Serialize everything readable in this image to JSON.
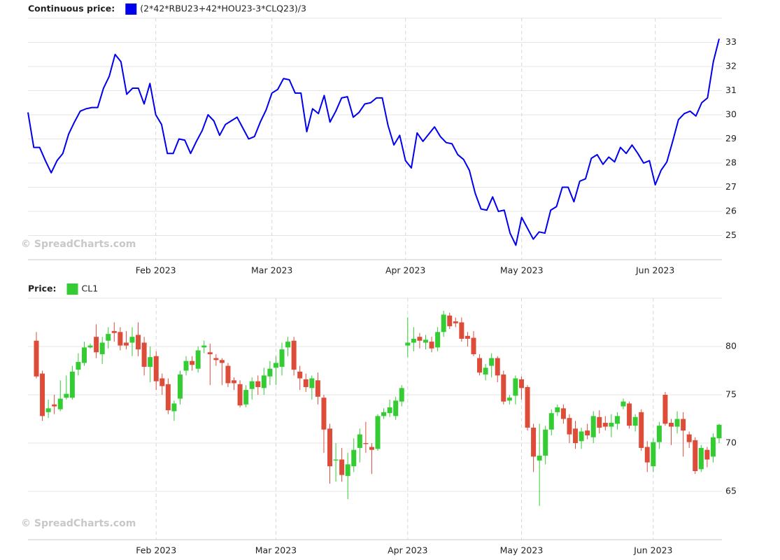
{
  "chart_data": [
    {
      "type": "line",
      "legend_label": "Continuous price:",
      "watermark": "© SpreadCharts.com",
      "series": [
        {
          "name": "(2*42*RBU23+42*HOU23-3*CLQ23)/3",
          "color": "#0000ee",
          "values": [
            30.1,
            28.65,
            28.65,
            28.1,
            27.6,
            28.1,
            28.4,
            29.2,
            29.7,
            30.15,
            30.25,
            30.3,
            30.3,
            31.1,
            31.6,
            32.5,
            32.2,
            30.85,
            31.1,
            31.1,
            30.45,
            31.3,
            30,
            29.6,
            28.4,
            28.4,
            29,
            28.95,
            28.4,
            28.9,
            29.35,
            30,
            29.75,
            29.15,
            29.6,
            29.75,
            29.9,
            29.45,
            29,
            29.1,
            29.7,
            30.2,
            30.9,
            31.05,
            31.5,
            31.45,
            30.9,
            30.9,
            29.3,
            30.25,
            30.05,
            30.8,
            29.7,
            30.15,
            30.7,
            30.75,
            29.9,
            30.1,
            30.45,
            30.5,
            30.7,
            30.7,
            29.55,
            28.75,
            29.15,
            28.1,
            27.8,
            29.25,
            28.9,
            29.2,
            29.5,
            29.1,
            28.85,
            28.8,
            28.35,
            28.15,
            27.7,
            26.75,
            26.1,
            26.05,
            26.6,
            26,
            26.05,
            25.1,
            24.6,
            25.75,
            25.3,
            24.85,
            25.15,
            25.1,
            26.05,
            26.2,
            27,
            27,
            26.4,
            27.25,
            27.35,
            28.2,
            28.35,
            27.95,
            28.25,
            28.05,
            28.65,
            28.4,
            28.75,
            28.4,
            28,
            28.1,
            27.1,
            27.7,
            28.05,
            28.9,
            29.8,
            30.05,
            30.15,
            29.95,
            30.5,
            30.7,
            32.2,
            33.15
          ]
        }
      ],
      "categories": [
        null,
        null,
        null,
        null,
        null,
        null,
        null,
        null,
        null,
        null,
        null,
        null,
        null,
        null,
        null,
        null,
        null,
        null,
        null,
        null,
        null,
        null,
        "Feb 2023",
        null,
        null,
        null,
        null,
        null,
        null,
        null,
        null,
        null,
        null,
        null,
        null,
        null,
        null,
        null,
        null,
        null,
        null,
        null,
        "Mar 2023",
        null,
        null,
        null,
        null,
        null,
        null,
        null,
        null,
        null,
        null,
        null,
        null,
        null,
        null,
        null,
        null,
        null,
        null,
        null,
        null,
        null,
        null,
        "Apr 2023",
        null,
        null,
        null,
        null,
        null,
        null,
        null,
        null,
        null,
        null,
        null,
        null,
        null,
        null,
        null,
        null,
        null,
        null,
        null,
        "May 2023",
        null,
        null,
        null,
        null,
        null,
        null,
        null,
        null,
        null,
        null,
        null,
        null,
        null,
        null,
        null,
        null,
        null,
        null,
        null,
        null,
        null,
        null,
        "Jun 2023",
        null,
        null,
        null,
        null,
        null,
        null,
        null,
        null,
        null,
        null,
        null
      ],
      "ylim": [
        24,
        34
      ],
      "yticks": [
        25,
        26,
        27,
        28,
        29,
        30,
        31,
        32,
        33
      ],
      "grid": true
    },
    {
      "type": "candlestick",
      "legend_label": "Price:",
      "watermark": "© SpreadCharts.com",
      "up_color": "#33cc33",
      "down_color": "#dd4b39",
      "series": [
        {
          "name": "CL1",
          "color": "#33cc33",
          "open": [
            80.6,
            77.2,
            73.2,
            74,
            73.5,
            74.7,
            74.7,
            77.6,
            78.3,
            79.9,
            81,
            79.2,
            80.6,
            81.6,
            81.5,
            80.4,
            80.4,
            81.2,
            80.4,
            77.9,
            79,
            76.7,
            76.1,
            73.3,
            74.6,
            77.5,
            78.5,
            77.7,
            79.9,
            79.4,
            78.8,
            78.6,
            78,
            76.5,
            76.1,
            74,
            75.6,
            76.4,
            75.7,
            76.9,
            77.8,
            77.9,
            79.9,
            80.6,
            77.4,
            76.6,
            75.7,
            76.5,
            74.7,
            71.5,
            68.2,
            68.3,
            66.6,
            67.6,
            69.5,
            70,
            69.6,
            69.4,
            72.8,
            73.1,
            72.8,
            74.3,
            80.1,
            80.4,
            81,
            80.4,
            80.5,
            79.9,
            81.5,
            83.2,
            82.6,
            82.5,
            81.1,
            80.9,
            78.8,
            77.1,
            78,
            78.8,
            77.1,
            74.4,
            74.9,
            76.6,
            75.8,
            71.6,
            68.2,
            68.7,
            71.4,
            73.2,
            73.6,
            72.6,
            71.5,
            70.2,
            71.3,
            70.6,
            72.7,
            72.1,
            71.7,
            72,
            73.8,
            74.1,
            71.8,
            73.2,
            69.6,
            67.6,
            70.1,
            75,
            72.1,
            71.7,
            72.5,
            70.9,
            70.3,
            67.3,
            69.3,
            68.6,
            70.5
          ],
          "high": [
            81.5,
            77.5,
            74.5,
            75,
            76.5,
            77,
            78,
            79.3,
            80.5,
            80.3,
            82.3,
            81,
            82,
            82.5,
            82,
            81.6,
            82,
            82.5,
            81,
            80,
            79.5,
            77.2,
            76.7,
            74.4,
            77.5,
            79,
            79,
            80,
            80.6,
            80.3,
            79.2,
            78.8,
            78.3,
            76.8,
            76.5,
            76,
            76.8,
            77,
            77.8,
            78.5,
            79,
            80.4,
            81,
            81,
            78,
            77.2,
            77,
            77.3,
            75,
            72,
            70,
            69.5,
            69,
            70.5,
            71.5,
            72.2,
            70,
            73,
            73.6,
            74.5,
            74.8,
            76,
            83,
            82,
            81.4,
            81.2,
            81,
            82,
            83.7,
            83.5,
            83,
            83,
            81.5,
            81.6,
            79.2,
            78.2,
            79.3,
            79,
            77.5,
            75,
            77,
            76.9,
            76,
            72,
            72,
            71.8,
            73.5,
            74,
            74,
            73,
            72.3,
            71.6,
            72,
            73.3,
            73.4,
            72.8,
            73,
            73.2,
            74.6,
            74.3,
            73,
            73.5,
            70.2,
            70.5,
            72.2,
            75.3,
            72.5,
            73.3,
            73.2,
            71.2,
            70.6,
            69.8,
            69.6,
            71,
            72
          ],
          "low": [
            76.7,
            72.3,
            72.6,
            73,
            73.3,
            74.5,
            74.5,
            77,
            78,
            79.8,
            78.8,
            78.2,
            79.8,
            80.5,
            79.6,
            79.7,
            79,
            79,
            77,
            76.3,
            75.5,
            75,
            73,
            72.3,
            74,
            77,
            77.5,
            77.3,
            79.3,
            76,
            78,
            76,
            75.8,
            75.5,
            73.7,
            73.7,
            74.5,
            75,
            75,
            76,
            76,
            77,
            79,
            77,
            75.5,
            75.3,
            74.5,
            74,
            69,
            65.8,
            66,
            66,
            64.2,
            67,
            68,
            69,
            66.8,
            69.2,
            72.5,
            72.7,
            72.4,
            73.8,
            78.9,
            79.5,
            79.8,
            79.7,
            79.4,
            79.5,
            81,
            81.8,
            82,
            80.5,
            80,
            79,
            77,
            76.5,
            76.8,
            76.3,
            74,
            74,
            74,
            74.5,
            71.3,
            67,
            63.5,
            67.8,
            70.8,
            72.8,
            72,
            70,
            69.4,
            69.4,
            70.4,
            70,
            71,
            71.3,
            70.6,
            71.4,
            73.5,
            71.5,
            71.2,
            69.2,
            67,
            67,
            69.4,
            71.8,
            69.8,
            71,
            68.6,
            69.5,
            66.8,
            67,
            67.5,
            68,
            70
          ],
          "close": [
            76.9,
            72.8,
            73.6,
            73.8,
            74.6,
            75.1,
            77.4,
            78.4,
            79.9,
            80.1,
            79.4,
            80.4,
            81.3,
            81.4,
            80.1,
            80.1,
            81,
            79.7,
            77.9,
            78.9,
            76.4,
            75.9,
            73.4,
            74.1,
            77.1,
            78.5,
            78.1,
            79.6,
            80.1,
            79.2,
            78.6,
            78.3,
            76.2,
            76.2,
            73.9,
            75.5,
            76.4,
            75.8,
            77,
            77.7,
            78.3,
            79.7,
            80.5,
            77.6,
            76.7,
            75.8,
            76.7,
            74.8,
            71.4,
            67.6,
            68.3,
            66.7,
            67.8,
            69.3,
            70.9,
            69.9,
            69.3,
            72.8,
            73.2,
            73.7,
            74.4,
            75.7,
            80.4,
            80.8,
            80.6,
            80.7,
            79.8,
            81.5,
            83.3,
            82.1,
            82.4,
            80.8,
            80.8,
            79.2,
            77.3,
            77.8,
            78.8,
            77,
            74.3,
            74.7,
            76.7,
            75.7,
            71.6,
            68.6,
            68.7,
            71.4,
            73.1,
            73.7,
            72.5,
            70.9,
            70,
            71.2,
            70.8,
            72.8,
            71.6,
            71.7,
            72.1,
            72.8,
            74.3,
            71.8,
            72.7,
            69.5,
            68,
            70.1,
            71.8,
            72,
            71.7,
            72.5,
            71.3,
            70.1,
            67.1,
            69.5,
            68.3,
            70.6,
            71.9
          ]
        }
      ],
      "categories": [
        null,
        null,
        null,
        null,
        null,
        null,
        null,
        null,
        null,
        null,
        null,
        null,
        null,
        null,
        null,
        null,
        null,
        null,
        null,
        null,
        "Feb 2023",
        null,
        null,
        null,
        null,
        null,
        null,
        null,
        null,
        null,
        null,
        null,
        null,
        null,
        null,
        null,
        null,
        null,
        null,
        null,
        "Mar 2023",
        null,
        null,
        null,
        null,
        null,
        null,
        null,
        null,
        null,
        null,
        null,
        null,
        null,
        null,
        null,
        null,
        null,
        null,
        null,
        null,
        null,
        "Apr 2023",
        null,
        null,
        null,
        null,
        null,
        null,
        null,
        null,
        null,
        null,
        null,
        null,
        null,
        null,
        null,
        null,
        null,
        null,
        "May 2023",
        null,
        null,
        null,
        null,
        null,
        null,
        null,
        null,
        null,
        null,
        null,
        null,
        null,
        null,
        null,
        null,
        null,
        null,
        null,
        null,
        null,
        "Jun 2023",
        null,
        null,
        null,
        null,
        null,
        null,
        null,
        null,
        null,
        null,
        null
      ],
      "ylim": [
        60,
        85
      ],
      "yticks": [
        65,
        70,
        75,
        80
      ],
      "grid": true
    }
  ]
}
